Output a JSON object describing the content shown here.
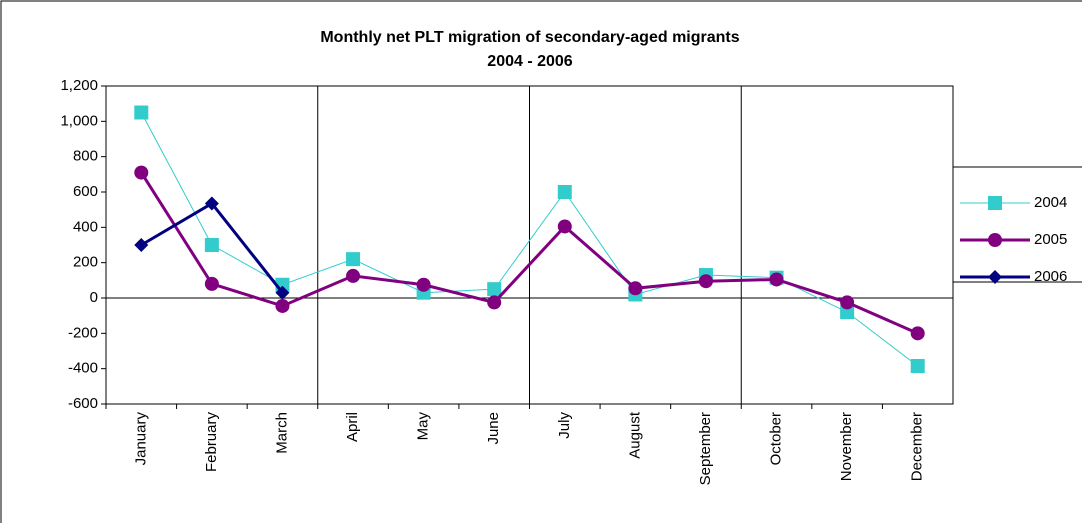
{
  "chart_data": {
    "type": "line",
    "title": "Monthly net PLT migration of secondary-aged migrants",
    "subtitle": "2004 - 2006",
    "categories": [
      "January",
      "February",
      "March",
      "April",
      "May",
      "June",
      "July",
      "August",
      "September",
      "October",
      "November",
      "December"
    ],
    "series": [
      {
        "name": "2004",
        "color": "#33cccc",
        "marker": "square",
        "values": [
          1050,
          300,
          75,
          220,
          30,
          50,
          600,
          20,
          130,
          115,
          -80,
          -385
        ]
      },
      {
        "name": "2005",
        "color": "#800080",
        "marker": "circle",
        "values": [
          710,
          80,
          -45,
          125,
          75,
          -25,
          405,
          55,
          95,
          105,
          -25,
          -200
        ]
      },
      {
        "name": "2006",
        "color": "#000080",
        "marker": "diamond",
        "values": [
          300,
          535,
          30,
          null,
          null,
          null,
          null,
          null,
          null,
          null,
          null,
          null
        ]
      }
    ],
    "ylim": [
      -600,
      1200
    ],
    "yticks": [
      {
        "value": -600,
        "label": "-600"
      },
      {
        "value": -400,
        "label": "-400"
      },
      {
        "value": -200,
        "label": "-200"
      },
      0,
      200,
      400,
      600,
      800,
      {
        "value": 1000,
        "label": "1,000"
      },
      {
        "value": 1200,
        "label": "1,200"
      }
    ],
    "legend": "right"
  }
}
